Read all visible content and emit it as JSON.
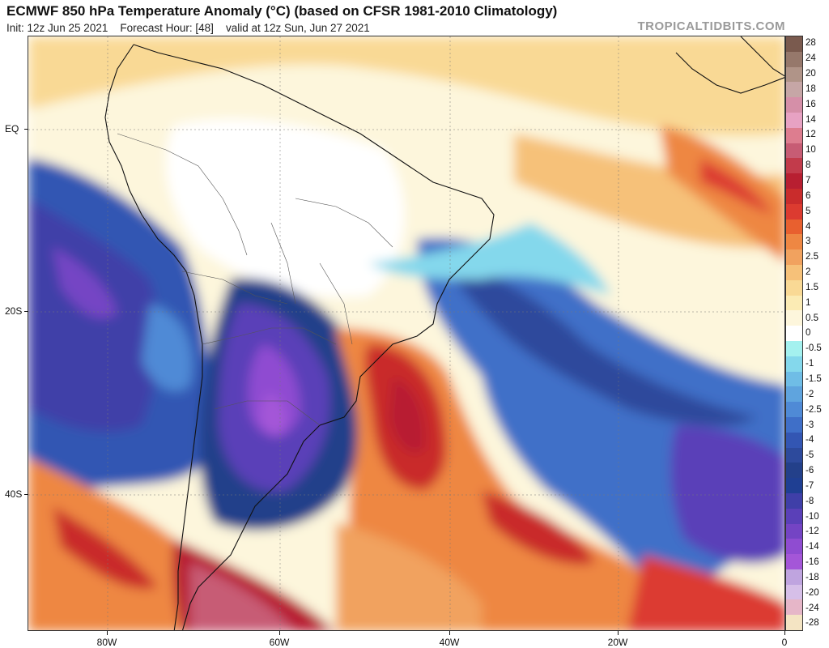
{
  "header": {
    "title": "ECMWF 850 hPa Temperature Anomaly (°C) (based on CFSR 1981-2010 Climatology)",
    "init": "Init: 12z Jun 25 2021",
    "forecast_hour": "Forecast Hour: [48]",
    "valid": "valid at 12z Sun, Jun 27 2021",
    "watermark": "TROPICALTIDBITS.COM"
  },
  "map": {
    "lat_labels": [
      "EQ",
      "20S",
      "40S"
    ],
    "lon_labels": [
      "80W",
      "60W",
      "40W",
      "20W",
      "0"
    ],
    "features": [
      "temperature-anomaly-field",
      "coastlines",
      "country-borders",
      "state-borders"
    ]
  },
  "colorbar": {
    "labels": [
      "28",
      "24",
      "20",
      "18",
      "16",
      "14",
      "12",
      "10",
      "8",
      "7",
      "6",
      "5",
      "4",
      "3",
      "2.5",
      "2",
      "1.5",
      "1",
      "0.5",
      "0",
      "-0.5",
      "-1",
      "-1.5",
      "-2",
      "-2.5",
      "-3",
      "-4",
      "-5",
      "-6",
      "-7",
      "-8",
      "-10",
      "-12",
      "-14",
      "-16",
      "-18",
      "-20",
      "-24",
      "-28"
    ],
    "colors": [
      "#7a5a4e",
      "#96786b",
      "#b09488",
      "#c6a6a6",
      "#d58fa8",
      "#e7a2c3",
      "#dd7d8f",
      "#c75c74",
      "#c23b4b",
      "#b81f31",
      "#c92c2c",
      "#dc3b30",
      "#e8602f",
      "#ee8743",
      "#f1a25f",
      "#f6c179",
      "#f9d995",
      "#fbebb4",
      "#fdf6dc",
      "#ffffff",
      "#a4f1ef",
      "#84d8ec",
      "#6fbde6",
      "#5fa4de",
      "#4f8ad6",
      "#3f6fc8",
      "#3356b3",
      "#2d4a9c",
      "#23408a",
      "#1f3f93",
      "#3f3fa8",
      "#5a40b8",
      "#7444c4",
      "#8f4cd1",
      "#a456d8",
      "#bfa4df",
      "#d6bfe8",
      "#e6b6c8",
      "#f4e4c3"
    ]
  }
}
